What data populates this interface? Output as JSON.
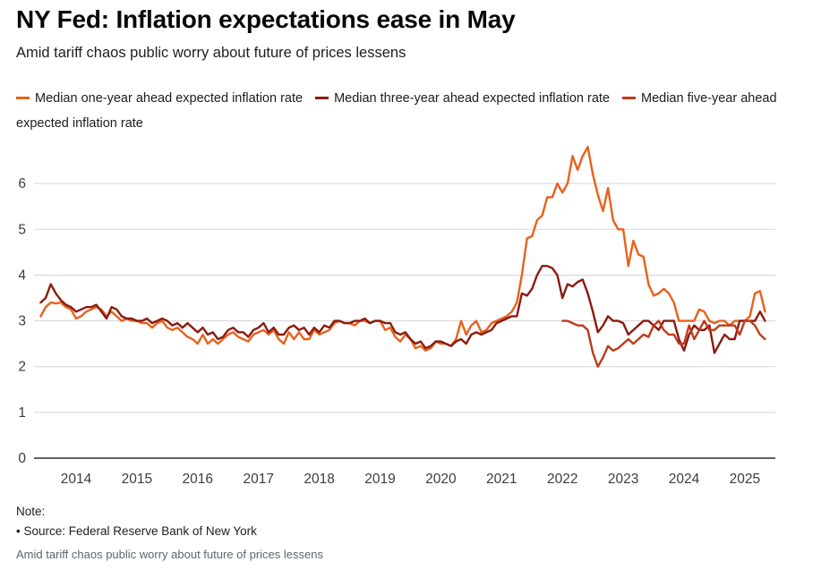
{
  "header": {
    "title": "NY Fed: Inflation expectations ease in May",
    "subtitle": "Amid tariff chaos public worry about future of prices lessens"
  },
  "legend": {
    "items": [
      {
        "id": "one-year",
        "label": "Median one-year ahead expected inflation rate",
        "color": "#E8611A"
      },
      {
        "id": "three-year",
        "label": "Median three-year ahead expected inflation rate",
        "color": "#8B1A10"
      },
      {
        "id": "five-year",
        "label": "Median five-year ahead expected inflation rate",
        "color": "#C0391B"
      }
    ]
  },
  "chart_data": {
    "type": "line",
    "title": "NY Fed: Inflation expectations ease in May",
    "subtitle": "Amid tariff chaos public worry about future of prices lessens",
    "xlabel": "",
    "ylabel": "",
    "ylim": [
      0,
      7
    ],
    "yticks": [
      0,
      1,
      2,
      3,
      4,
      5,
      6
    ],
    "xticks": [
      2014,
      2015,
      2016,
      2017,
      2018,
      2019,
      2020,
      2021,
      2022,
      2023,
      2024,
      2025
    ],
    "grid": true,
    "legend_position": "top",
    "x_unit": "monthly (decimal years)",
    "series": [
      {
        "name": "Median one-year ahead expected inflation rate",
        "color": "#E8611A",
        "start_year": 2013,
        "start_month": 6,
        "values": [
          3.1,
          3.3,
          3.4,
          3.38,
          3.4,
          3.3,
          3.25,
          3.05,
          3.1,
          3.2,
          3.25,
          3.3,
          3.25,
          3.1,
          3.2,
          3.1,
          3.0,
          3.05,
          3.0,
          3.0,
          2.95,
          2.95,
          2.85,
          2.95,
          3.0,
          2.85,
          2.8,
          2.85,
          2.75,
          2.65,
          2.6,
          2.5,
          2.7,
          2.5,
          2.6,
          2.5,
          2.6,
          2.7,
          2.75,
          2.65,
          2.6,
          2.55,
          2.7,
          2.75,
          2.8,
          2.7,
          2.8,
          2.6,
          2.5,
          2.75,
          2.6,
          2.75,
          2.6,
          2.6,
          2.8,
          2.7,
          2.75,
          2.8,
          2.95,
          3.0,
          2.95,
          2.95,
          2.9,
          3.0,
          3.0,
          2.95,
          3.0,
          3.0,
          2.8,
          2.85,
          2.65,
          2.55,
          2.7,
          2.6,
          2.4,
          2.45,
          2.35,
          2.4,
          2.55,
          2.5,
          2.5,
          2.45,
          2.6,
          3.0,
          2.7,
          2.9,
          3.0,
          2.75,
          2.8,
          2.95,
          3.0,
          3.05,
          3.1,
          3.2,
          3.4,
          4.0,
          4.8,
          4.85,
          5.2,
          5.3,
          5.7,
          5.7,
          6.0,
          5.8,
          6.0,
          6.6,
          6.3,
          6.6,
          6.8,
          6.2,
          5.75,
          5.4,
          5.9,
          5.2,
          5.0,
          5.0,
          4.2,
          4.75,
          4.45,
          4.4,
          3.8,
          3.55,
          3.6,
          3.7,
          3.6,
          3.4,
          3.0,
          3.0,
          3.0,
          3.0,
          3.25,
          3.2,
          3.0,
          2.95,
          3.0,
          3.0,
          2.9,
          3.0,
          3.0,
          3.0,
          3.1,
          3.6,
          3.65,
          3.2
        ]
      },
      {
        "name": "Median three-year ahead expected inflation rate",
        "color": "#8B1A10",
        "start_year": 2013,
        "start_month": 6,
        "values": [
          3.4,
          3.5,
          3.8,
          3.6,
          3.45,
          3.35,
          3.3,
          3.2,
          3.25,
          3.3,
          3.3,
          3.35,
          3.2,
          3.05,
          3.3,
          3.25,
          3.1,
          3.05,
          3.05,
          3.0,
          3.0,
          3.05,
          2.95,
          3.0,
          3.05,
          3.0,
          2.9,
          2.95,
          2.85,
          2.95,
          2.85,
          2.75,
          2.85,
          2.7,
          2.75,
          2.6,
          2.65,
          2.8,
          2.85,
          2.75,
          2.75,
          2.65,
          2.8,
          2.85,
          2.95,
          2.75,
          2.85,
          2.7,
          2.7,
          2.85,
          2.9,
          2.8,
          2.85,
          2.7,
          2.85,
          2.75,
          2.9,
          2.85,
          3.0,
          3.0,
          2.95,
          2.95,
          3.0,
          3.0,
          3.05,
          2.95,
          3.0,
          3.0,
          2.95,
          2.95,
          2.75,
          2.7,
          2.75,
          2.6,
          2.5,
          2.55,
          2.4,
          2.45,
          2.55,
          2.55,
          2.5,
          2.45,
          2.55,
          2.6,
          2.5,
          2.7,
          2.75,
          2.7,
          2.75,
          2.8,
          2.95,
          3.0,
          3.05,
          3.1,
          3.1,
          3.6,
          3.55,
          3.7,
          4.0,
          4.2,
          4.2,
          4.15,
          4.0,
          3.5,
          3.8,
          3.75,
          3.85,
          3.9,
          3.6,
          3.2,
          2.75,
          2.9,
          3.1,
          3.0,
          3.0,
          2.95,
          2.7,
          2.8,
          2.9,
          3.0,
          3.0,
          2.9,
          2.8,
          3.0,
          3.0,
          3.0,
          2.6,
          2.35,
          2.7,
          2.9,
          2.8,
          2.8,
          2.9,
          2.3,
          2.5,
          2.7,
          2.6,
          2.6,
          3.0,
          3.0,
          3.0,
          3.0,
          3.2,
          3.0
        ]
      },
      {
        "name": "Median five-year ahead expected inflation rate",
        "color": "#C0391B",
        "start_year": 2022,
        "start_month": 1,
        "values": [
          3.0,
          3.0,
          2.95,
          2.9,
          2.9,
          2.8,
          2.3,
          2.0,
          2.2,
          2.45,
          2.35,
          2.4,
          2.5,
          2.6,
          2.5,
          2.6,
          2.7,
          2.65,
          2.9,
          3.0,
          2.8,
          2.7,
          2.7,
          2.5,
          2.5,
          2.9,
          2.6,
          2.8,
          3.0,
          2.8,
          2.8,
          2.9,
          2.9,
          2.9,
          2.9,
          2.7,
          3.0,
          3.0,
          2.9,
          2.7,
          2.6
        ]
      }
    ]
  },
  "note": {
    "label": "Note:",
    "source": "• Source: Federal Reserve Bank of New York"
  },
  "footer": {
    "caption": "Amid tariff chaos public worry about future of prices lessens"
  },
  "colors": {
    "gridline": "#d9d9d9",
    "axis_line": "#2b2b2b",
    "tick_label": "#3d3d3d"
  }
}
